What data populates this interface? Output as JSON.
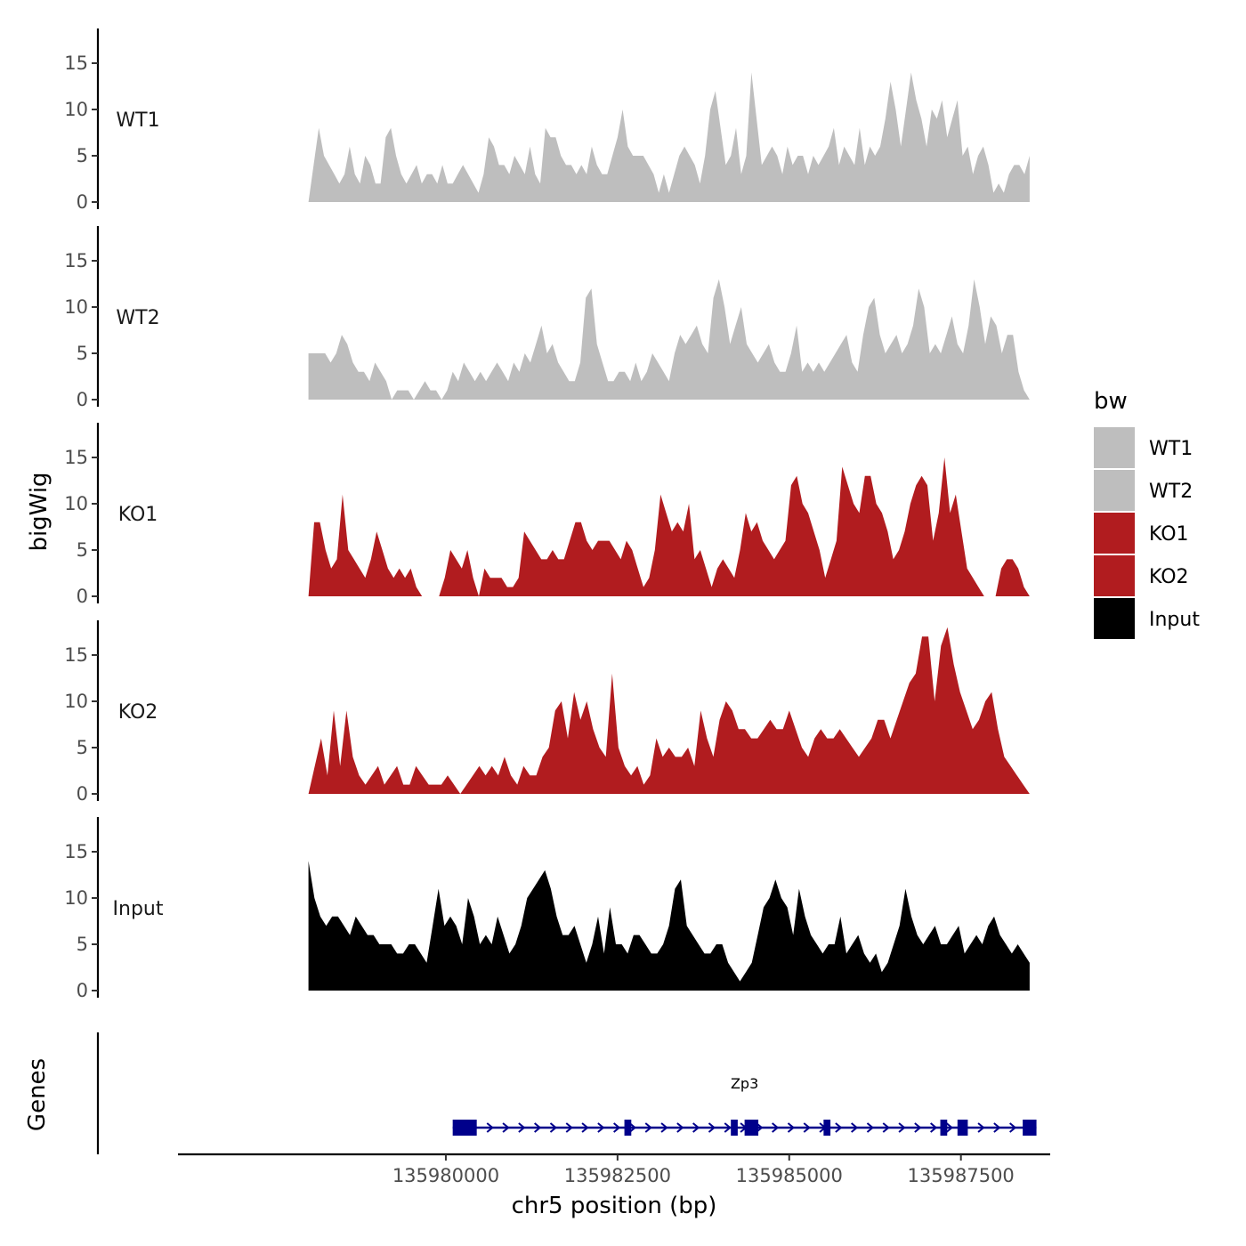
{
  "chart_data": {
    "type": "area",
    "ylabel": "bigWig",
    "xlabel": "chr5 position (bp)",
    "xlim": [
      135976100,
      135988800
    ],
    "ylim": [
      0,
      18.8
    ],
    "yticks": [
      0,
      5,
      10,
      15
    ],
    "xticks": [
      135980000,
      135982500,
      135985000,
      135987500
    ],
    "x_start": 135978000,
    "x_end": 135988500,
    "legend": {
      "title": "bw",
      "entries": [
        {
          "label": "WT1",
          "color": "#bebebe"
        },
        {
          "label": "WT2",
          "color": "#bebebe"
        },
        {
          "label": "KO1",
          "color": "#b11c1f"
        },
        {
          "label": "KO2",
          "color": "#b11c1f"
        },
        {
          "label": "Input",
          "color": "#000000"
        }
      ]
    },
    "series": [
      {
        "name": "WT1",
        "color": "#bebebe",
        "values": [
          0,
          4,
          8,
          5,
          4,
          3,
          2,
          3,
          6,
          3,
          2,
          5,
          4,
          2,
          2,
          7,
          8,
          5,
          3,
          2,
          3,
          4,
          2,
          3,
          3,
          2,
          4,
          2,
          2,
          3,
          4,
          3,
          2,
          1,
          3,
          7,
          6,
          4,
          4,
          3,
          5,
          4,
          3,
          6,
          3,
          2,
          8,
          7,
          7,
          5,
          4,
          4,
          3,
          4,
          3,
          6,
          4,
          3,
          3,
          5,
          7,
          10,
          6,
          5,
          5,
          5,
          4,
          3,
          1,
          3,
          1,
          3,
          5,
          6,
          5,
          4,
          2,
          5,
          10,
          12,
          8,
          4,
          5,
          8,
          3,
          5,
          14,
          9,
          4,
          5,
          6,
          5,
          3,
          6,
          4,
          5,
          5,
          3,
          5,
          4,
          5,
          6,
          8,
          4,
          6,
          5,
          4,
          8,
          4,
          6,
          5,
          6,
          9,
          13,
          10,
          6,
          10,
          14,
          11,
          9,
          6,
          10,
          9,
          11,
          7,
          9,
          11,
          5,
          6,
          3,
          5,
          6,
          4,
          1,
          2,
          1,
          3,
          4,
          4,
          3,
          5
        ]
      },
      {
        "name": "WT2",
        "color": "#bebebe",
        "values": [
          5,
          5,
          5,
          5,
          4,
          5,
          7,
          6,
          4,
          3,
          3,
          2,
          4,
          3,
          2,
          0,
          1,
          1,
          1,
          0,
          1,
          2,
          1,
          1,
          0,
          1,
          3,
          2,
          4,
          3,
          2,
          3,
          2,
          3,
          4,
          3,
          2,
          4,
          3,
          5,
          4,
          6,
          8,
          5,
          6,
          4,
          3,
          2,
          2,
          4,
          11,
          12,
          6,
          4,
          2,
          2,
          3,
          3,
          2,
          4,
          2,
          3,
          5,
          4,
          3,
          2,
          5,
          7,
          6,
          7,
          8,
          6,
          5,
          11,
          13,
          10,
          6,
          8,
          10,
          6,
          5,
          4,
          5,
          6,
          4,
          3,
          3,
          5,
          8,
          3,
          4,
          3,
          4,
          3,
          4,
          5,
          6,
          7,
          4,
          3,
          7,
          10,
          11,
          7,
          5,
          6,
          7,
          5,
          6,
          8,
          12,
          10,
          5,
          6,
          5,
          7,
          9,
          6,
          5,
          8,
          13,
          10,
          6,
          9,
          8,
          5,
          7,
          7,
          3,
          1,
          0
        ]
      },
      {
        "name": "KO1",
        "color": "#b11c1f",
        "values": [
          0,
          8,
          8,
          5,
          3,
          4,
          11,
          5,
          4,
          3,
          2,
          4,
          7,
          5,
          3,
          2,
          3,
          2,
          3,
          1,
          0,
          0,
          0,
          0,
          2,
          5,
          4,
          3,
          5,
          2,
          0,
          3,
          2,
          2,
          2,
          1,
          1,
          2,
          7,
          6,
          5,
          4,
          4,
          5,
          4,
          4,
          6,
          8,
          8,
          6,
          5,
          6,
          6,
          6,
          5,
          4,
          6,
          5,
          3,
          1,
          2,
          5,
          11,
          9,
          7,
          8,
          7,
          10,
          4,
          5,
          3,
          1,
          3,
          4,
          3,
          2,
          5,
          9,
          7,
          8,
          6,
          5,
          4,
          5,
          6,
          12,
          13,
          10,
          9,
          7,
          5,
          2,
          4,
          6,
          14,
          12,
          10,
          9,
          13,
          13,
          10,
          9,
          7,
          4,
          5,
          7,
          10,
          12,
          13,
          12,
          6,
          9,
          15,
          9,
          11,
          7,
          3,
          2,
          1,
          0,
          0,
          0,
          3,
          4,
          4,
          3,
          1,
          0
        ]
      },
      {
        "name": "KO2",
        "color": "#b11c1f",
        "values": [
          0,
          3,
          6,
          2,
          9,
          3,
          9,
          4,
          2,
          1,
          2,
          3,
          1,
          2,
          3,
          1,
          1,
          3,
          2,
          1,
          1,
          1,
          2,
          1,
          0,
          1,
          2,
          3,
          2,
          3,
          2,
          4,
          2,
          1,
          3,
          2,
          2,
          4,
          5,
          9,
          10,
          6,
          11,
          8,
          10,
          7,
          5,
          4,
          13,
          5,
          3,
          2,
          3,
          1,
          2,
          6,
          4,
          5,
          4,
          4,
          5,
          3,
          9,
          6,
          4,
          8,
          10,
          9,
          7,
          7,
          6,
          6,
          7,
          8,
          7,
          7,
          9,
          7,
          5,
          4,
          6,
          7,
          6,
          6,
          7,
          6,
          5,
          4,
          5,
          6,
          8,
          8,
          6,
          8,
          10,
          12,
          13,
          17,
          17,
          10,
          16,
          18,
          14,
          11,
          9,
          7,
          8,
          10,
          11,
          7,
          4,
          3,
          2,
          1,
          0
        ]
      },
      {
        "name": "Input",
        "color": "#000000",
        "values": [
          14,
          10,
          8,
          7,
          8,
          8,
          7,
          6,
          8,
          7,
          6,
          6,
          5,
          5,
          5,
          4,
          4,
          5,
          5,
          4,
          3,
          7,
          11,
          7,
          8,
          7,
          5,
          10,
          8,
          5,
          6,
          5,
          8,
          6,
          4,
          5,
          7,
          10,
          11,
          12,
          13,
          11,
          8,
          6,
          6,
          7,
          5,
          3,
          5,
          8,
          4,
          9,
          5,
          5,
          4,
          6,
          6,
          5,
          4,
          4,
          5,
          7,
          11,
          12,
          7,
          6,
          5,
          4,
          4,
          5,
          5,
          3,
          2,
          1,
          2,
          3,
          6,
          9,
          10,
          12,
          10,
          9,
          6,
          11,
          8,
          6,
          5,
          4,
          5,
          5,
          8,
          4,
          5,
          6,
          4,
          3,
          4,
          2,
          3,
          5,
          7,
          11,
          8,
          6,
          5,
          6,
          7,
          5,
          5,
          6,
          7,
          4,
          5,
          6,
          5,
          7,
          8,
          6,
          5,
          4,
          5,
          4,
          3
        ]
      }
    ],
    "gene": {
      "name": "Zp3",
      "strand": "+",
      "start": 135980100,
      "end": 135988600,
      "exons": [
        [
          135980100,
          135980450
        ],
        [
          135982600,
          135982700
        ],
        [
          135984150,
          135984250
        ],
        [
          135984350,
          135984550
        ],
        [
          135985500,
          135985600
        ],
        [
          135987200,
          135987300
        ],
        [
          135987450,
          135987600
        ],
        [
          135988400,
          135988600
        ]
      ]
    },
    "track_panel_title": "Genes"
  }
}
